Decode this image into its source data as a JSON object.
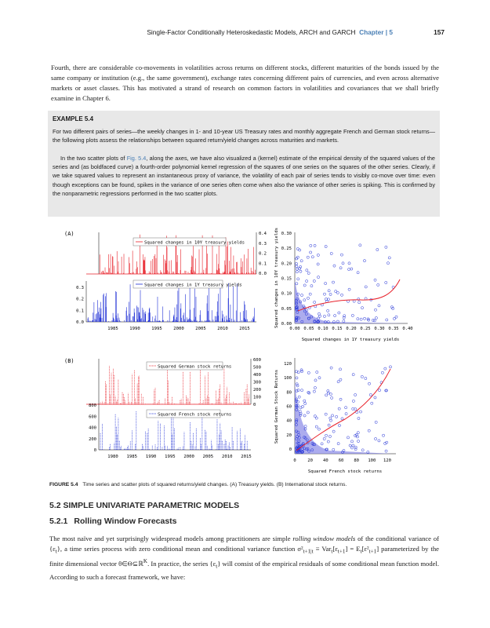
{
  "header": {
    "title": "Single-Factor Conditionally Heteroskedastic Models, ARCH and GARCH",
    "chapter": "Chapter | 5",
    "page_number": "157"
  },
  "intro_paragraph": "Fourth, there are considerable co-movements in volatilities across returns on different stocks, different maturities of the bonds issued by the same company or institution (e.g., the same government), exchange rates concerning different pairs of currencies, and even across alternative markets or asset classes. This has motivated a strand of research on common factors in volatilities and covariances that we shall briefly examine in Chapter 6.",
  "example": {
    "heading": "EXAMPLE 5.4",
    "para1": "For two different pairs of series—the weekly changes in 1- and 10-year US Treasury rates and monthly aggregate French and German stock returns—the following plots assess the relationships between squared return/yield changes across maturities and markets.",
    "para2_a": "In the two scatter plots of ",
    "para2_link": "Fig. 5.4",
    "para2_b": ", along the axes, we have also visualized a (kernel) estimate of the empirical density of the squared values of the series and (as boldfaced curve) a fourth-order polynomial kernel regression of the squares of one series on the squares of the other series. Clearly, if we take squared values to represent an instantaneous proxy of variance, the volatility of each pair of series tends to visibly co-move over time: even though exceptions can be found, spikes in the variance of one series often come when also the variance of other series is spiking. This is confirmed by the nonparametric regressions performed in the two scatter plots."
  },
  "figure": {
    "panel_a_label": "(A)",
    "panel_b_label": "(B)",
    "a_top_legend": "Squared changes in 10Y treasury yields",
    "a_bottom_legend": "Squared changes in 1Y treasury yields",
    "b_top_legend": "Squared German stock returns",
    "b_bottom_legend": "Squared French stock returns",
    "a_top_ticks": [
      "0.4",
      "0.3",
      "0.2",
      "0.1",
      "0.0"
    ],
    "a_bottom_ticks": [
      "0.3",
      "0.2",
      "0.1",
      "0.0"
    ],
    "a_years": [
      "1985",
      "1990",
      "1995",
      "2000",
      "2005",
      "2010",
      "2015"
    ],
    "b_top_ticks": [
      "600",
      "500",
      "400",
      "300",
      "200",
      "100",
      "0"
    ],
    "b_bottom_ticks": [
      "800",
      "600",
      "400",
      "200",
      "0"
    ],
    "b_years": [
      "1980",
      "1985",
      "1990",
      "1995",
      "2000",
      "2005",
      "2010",
      "2015"
    ],
    "scatter_a_y_ticks": [
      "0.30",
      "0.25",
      "0.20",
      "0.15",
      "0.10",
      "0.05",
      "0.00"
    ],
    "scatter_a_x_ticks": [
      "0.00",
      "0.05",
      "0.10",
      "0.15",
      "0.20",
      "0.25",
      "0.30",
      "0.35",
      "0.40"
    ],
    "scatter_a_xlabel": "Squared changes in 1Y treasury yields",
    "scatter_a_ylabel": "Squared changes in 10Y treasury yields",
    "scatter_b_y_ticks": [
      "120",
      "100",
      "80",
      "60",
      "40",
      "20",
      "0"
    ],
    "scatter_b_x_ticks": [
      "0",
      "20",
      "40",
      "60",
      "80",
      "100",
      "120"
    ],
    "scatter_b_xlabel": "Squared French stock returns",
    "scatter_b_ylabel": "Squared German Stock Returns",
    "colors": {
      "red": "#e8212a",
      "blue": "#1f2fd6",
      "density": "#8a8ae8"
    }
  },
  "caption": {
    "label": "FIGURE 5.4",
    "text": "Time series and scatter plots of squared returns/yield changes. (A) Treasury yields. (B) International stock returns."
  },
  "section": {
    "heading": "5.2 SIMPLE UNIVARIATE PARAMETRIC MODELS",
    "sub_number": "5.2.1",
    "sub_title": "Rolling Window Forecasts"
  },
  "body": {
    "p1_a": "The most naïve and yet surprisingly widespread models among practitioners are simple ",
    "p1_em": "rolling window models",
    "p1_b": " of the conditional variance of {ε",
    "p1_c": "}, a time series process with zero conditional mean and conditional variance function σ²",
    "p1_d": " ≡ Var",
    "p1_e": "[ε",
    "p1_f": "] = E",
    "p1_g": "[ε²",
    "p1_h": "] parameterized by the finite dimensional vector θ∈Θ⊆ℝ",
    "p1_i": ". In practice, the series {ε",
    "p1_j": "} will consist of the empirical residuals of some conditional mean function model. According to such a forecast framework, we have:",
    "sub_t": "t",
    "sub_t1t": "t+1|t",
    "sub_t1": "t+1",
    "sup_K": "K"
  }
}
